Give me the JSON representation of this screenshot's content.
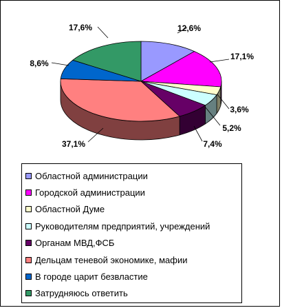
{
  "chart_data": {
    "type": "pie",
    "categories": [
      "Областной администрации",
      "Городской администрации",
      "Областной Думе",
      "Руководителям предприятий, учреждений",
      "Органам МВД,ФСБ",
      "Дельцам теневой экономике, мафии",
      "В городе царит безвластие",
      "Затрудняюсь ответить"
    ],
    "values": [
      12.6,
      17.1,
      3.6,
      5.2,
      7.4,
      37.1,
      8.6,
      17.6
    ],
    "labels": [
      "12,6%",
      "17,1%",
      "3,6%",
      "5,2%",
      "7,4%",
      "37,1%",
      "8,6%",
      "17,6%"
    ],
    "colors": [
      "#9999ff",
      "#ff00ff",
      "#ffffcc",
      "#ccffff",
      "#660066",
      "#ff8080",
      "#0066cc",
      "#339966"
    ],
    "legend_position": "bottom"
  }
}
